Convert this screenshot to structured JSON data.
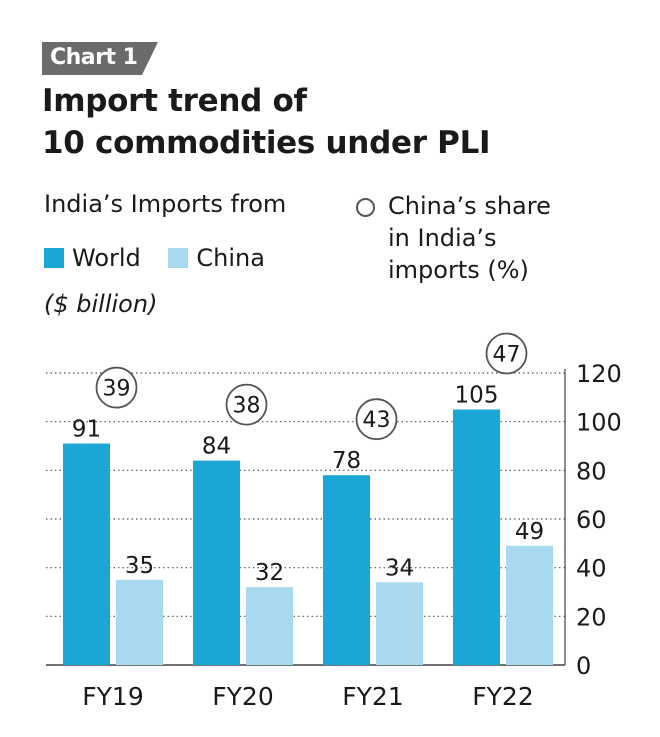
{
  "tag": "Chart 1",
  "title_lines": [
    "Import trend of",
    "10 commodities under PLI"
  ],
  "legend": {
    "heading": "India’s Imports from",
    "world": "World",
    "china": "China",
    "unit": "($ billion)",
    "share_lines": [
      "China’s share",
      "in India’s",
      "imports (%)"
    ]
  },
  "colors": {
    "world": "#1aa7d6",
    "china": "#a9d9ee",
    "tag_bg": "#6b6b6b"
  },
  "chart_data": {
    "type": "bar",
    "categories": [
      "FY19",
      "FY20",
      "FY21",
      "FY22"
    ],
    "series": [
      {
        "name": "World",
        "values": [
          91,
          84,
          78,
          105
        ]
      },
      {
        "name": "China",
        "values": [
          35,
          32,
          34,
          49
        ]
      }
    ],
    "share": [
      39,
      38,
      43,
      47
    ],
    "ylim": [
      0,
      120
    ],
    "yticks": [
      0,
      20,
      40,
      60,
      80,
      100,
      120
    ],
    "axis_position": "right",
    "grid": "dotted"
  }
}
